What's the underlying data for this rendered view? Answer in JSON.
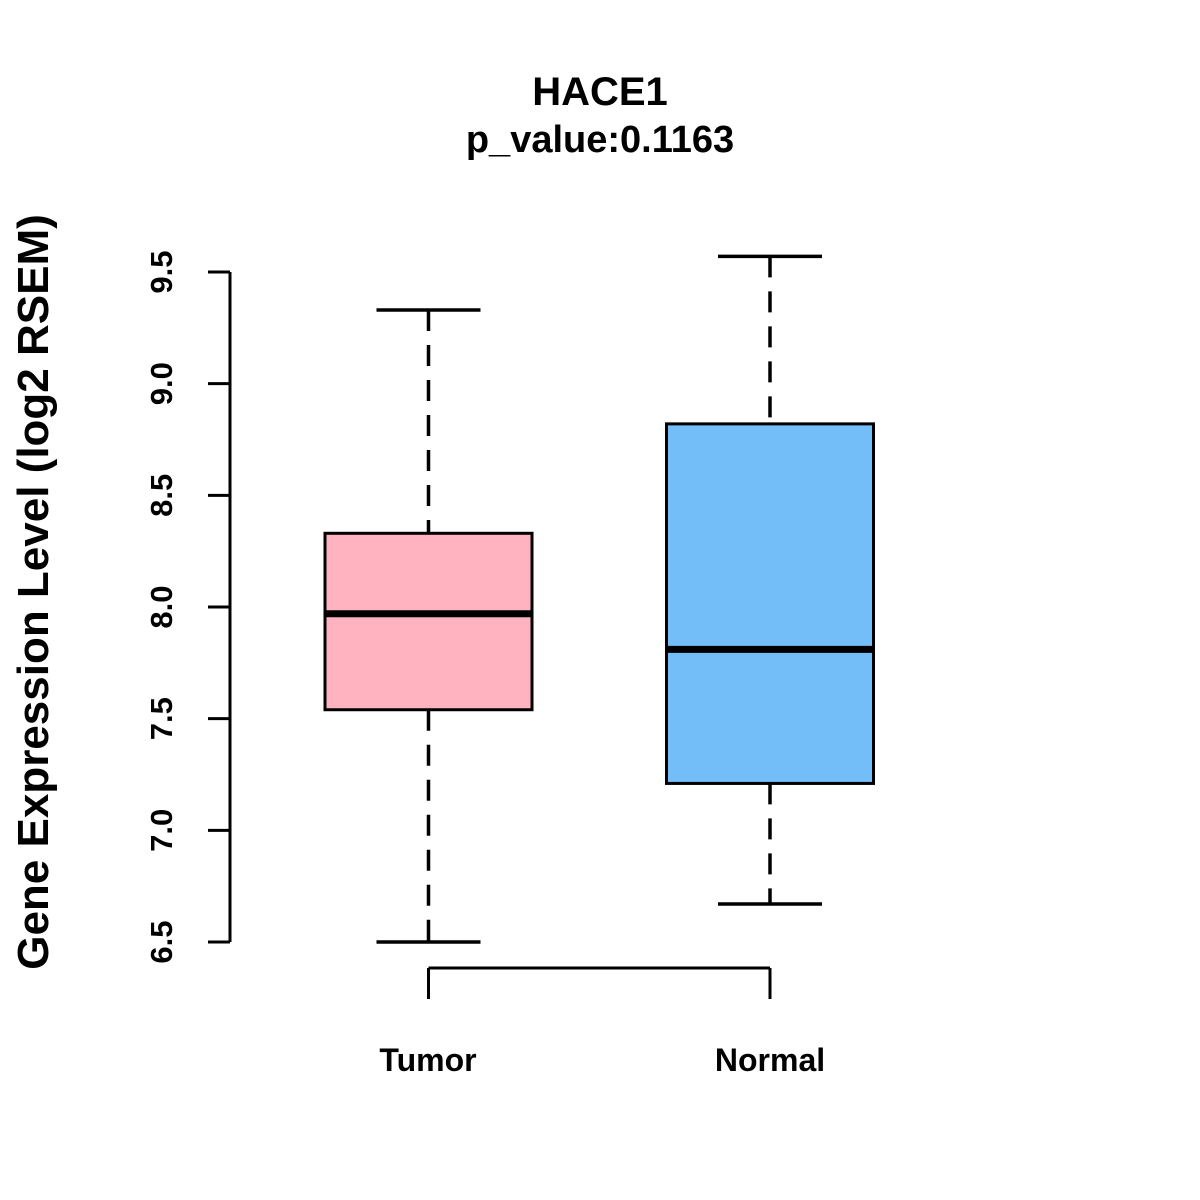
{
  "page": {
    "background": "#FFFFFF"
  },
  "chart_data": {
    "type": "boxplot",
    "title": "HACE1",
    "subtitle": "p_value:0.1163",
    "ylabel": "Gene Expression Level (log2 RSEM)",
    "xlabel": "",
    "categories": [
      "Tumor",
      "Normal"
    ],
    "series": [
      {
        "name": "Tumor",
        "fill_color": "#FFB3C1",
        "whisker_low": 6.5,
        "q1": 7.54,
        "median": 7.97,
        "q3": 8.33,
        "whisker_high": 9.33
      },
      {
        "name": "Normal",
        "fill_color": "#73BDF8",
        "whisker_low": 6.67,
        "q1": 7.21,
        "median": 7.81,
        "q3": 8.82,
        "whisker_high": 9.57
      }
    ],
    "yticks": [
      "6.5",
      "7.0",
      "7.5",
      "8.0",
      "8.5",
      "9.0",
      "9.5"
    ],
    "ylim": [
      6.5,
      9.5
    ],
    "grid": "off",
    "legend": "none",
    "stroke_color": "#000000"
  }
}
